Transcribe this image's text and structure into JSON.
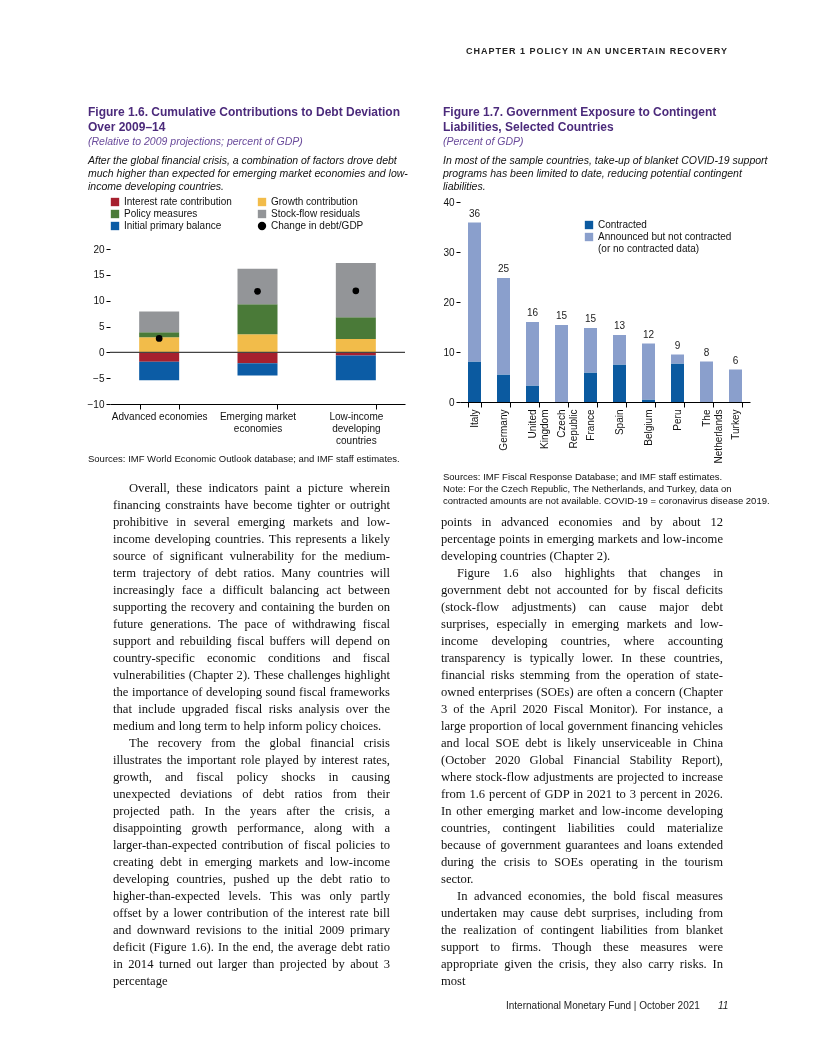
{
  "chart_data": [
    {
      "type": "bar",
      "title": "Figure 1.6. Cumulative Contributions to Debt Deviation Over 2009–14",
      "subtitle": "(Relative to 2009 projections; percent of GDP)",
      "annotations": [
        "After the global financial crisis, a combination of factors drove debt much higher than expected for emerging market economies and low-income developing countries.",
        "Sources: IMF World Economic Outlook database; and IMF staff estimates.",
        "CHAPTER 1   POLICY IN AN UNCERTAIN RECOVERY",
        "Overall, these indicators paint a picture wherein financing constraints have become tighter or outright prohibitive in several emerging markets and low-income developing countries. This represents a likely source of significant vulnerability for the medium-term trajectory of debt ratios. Many countries will increasingly face a difficult balancing act between supporting the recovery and containing the burden on future generations. The pace of withdrawing fiscal support and rebuilding fiscal buffers will depend on country-specific economic conditions and fiscal vulnerabilities (Chapter 2). These challenges highlight the importance of developing sound fiscal frameworks that include upgraded fiscal risks analysis over the medium and long term to help inform policy choices.",
        "The recovery from the global financial crisis illustrates the important role played by interest rates, growth, and fiscal policy shocks in causing unexpected deviations of debt ratios from their projected path. In the years after the crisis, a disappointing growth performance, along with a larger-than-expected contribution of fiscal policies to creating debt in emerging markets and low-income developing countries, pushed up the debt ratio to higher-than-expected levels. This was only partly offset by a lower contribution of the interest rate bill and downward revisions to the initial 2009 primary deficit (Figure 1.6). In the end, the average debt ratio in 2014 turned out larger than projected by about 3 percentage"
      ],
      "categories": [
        "Advanced economies",
        "Emerging market economies",
        "Low-income developing countries"
      ],
      "stacked": true,
      "series": [
        {
          "name": "Interest rate contribution",
          "color": "#a6202e",
          "values": [
            -1.8,
            -2.1,
            -0.6
          ]
        },
        {
          "name": "Growth contribution",
          "color": "#f2bc4a",
          "values": [
            2.9,
            3.5,
            2.6
          ]
        },
        {
          "name": "Policy measures",
          "color": "#4a7a38",
          "values": [
            1.0,
            5.8,
            4.2
          ]
        },
        {
          "name": "Stock-flow residuals",
          "color": "#939598",
          "values": [
            4.0,
            6.9,
            10.5
          ]
        },
        {
          "name": "Initial primary balance",
          "color": "#0c5ca5",
          "values": [
            -3.6,
            -2.4,
            -4.8
          ]
        },
        {
          "name": "Change in debt/GDP",
          "type": "scatter",
          "color": "#000000",
          "x": [
            "Advanced economies",
            "Emerging market economies",
            "Low-income developing countries"
          ],
          "values": [
            2.7,
            11.8,
            11.9
          ]
        }
      ],
      "ylim": [
        -10,
        20
      ],
      "yticks": [
        {
          "value": -10,
          "label": "−10"
        },
        {
          "value": -5,
          "label": "−5"
        },
        0,
        5,
        10,
        15,
        20
      ],
      "ref_lines": [
        {
          "axis": "y",
          "value": 0,
          "color": "#444444"
        }
      ],
      "legend": "top"
    },
    {
      "type": "bar",
      "title": "Figure 1.7. Government Exposure to Contingent Liabilities, Selected Countries",
      "subtitle": "(Percent of GDP)",
      "annotations": [
        "In most of the sample countries, take-up of blanket COVID-19 support programs has been limited to date, reducing potential contingent liabilities.",
        "Sources: IMF Fiscal Response Database; and IMF staff estimates.",
        "Note: For the Czech Republic, The Netherlands, and Turkey, data on contracted amounts are not available. COVID-19 = coronavirus disease 2019.",
        "points in advanced economies and by about 12 percentage points in emerging markets and low-income developing countries (Chapter 2).",
        "Figure 1.6 also highlights that changes in government debt not accounted for by fiscal deficits (stock-flow adjustments) can cause major debt surprises, especially in emerging markets and low-income developing countries, where accounting transparency is typically lower. In these countries, financial risks stemming from the operation of state-owned enterprises (SOEs) are often a concern (Chapter 3 of the April 2020 Fiscal Monitor). For instance, a large proportion of local government financing vehicles and local SOE debt is likely unserviceable in China (October 2020 Global Financial Stability Report), where stock-flow adjustments are projected to increase from 1.6 percent of GDP in 2021 to 3 percent in 2026. In other emerging market and low-income developing countries, contingent liabilities could materialize because of government guarantees and loans extended during the crisis to SOEs operating in the tourism sector.",
        "In advanced economies, the bold fiscal measures undertaken may cause debt surprises, including from the realization of contingent liabilities from blanket support to firms. Though these measures were appropriate given the crisis, they also carry risks. In most",
        "International Monetary Fund | October 2021",
        "11"
      ],
      "categories": [
        "Italy",
        "Germany",
        "United Kingdom",
        "Czech Republic",
        "France",
        "Spain",
        "Belgium",
        "Peru",
        "The Netherlands",
        "Turkey"
      ],
      "stacked": true,
      "series": [
        {
          "name": "Contracted",
          "color": "#0b5aa0",
          "values": [
            8.1,
            5.5,
            3.3,
            null,
            5.9,
            7.5,
            0.5,
            7.7,
            null,
            null
          ]
        },
        {
          "name": "Announced but not contracted (or no contracted data)",
          "color": "#8a9fcc",
          "values": [
            27.8,
            19.3,
            12.7,
            15.4,
            8.9,
            5.9,
            11.2,
            1.8,
            8.1,
            6.5
          ]
        }
      ],
      "totals": [
        "36",
        "25",
        "16",
        "15",
        "15",
        "13",
        "12",
        "9",
        "8",
        "6"
      ],
      "ylim": [
        0,
        40
      ],
      "yticks": [
        0,
        10,
        20,
        30,
        40
      ],
      "legend": "top right"
    }
  ]
}
